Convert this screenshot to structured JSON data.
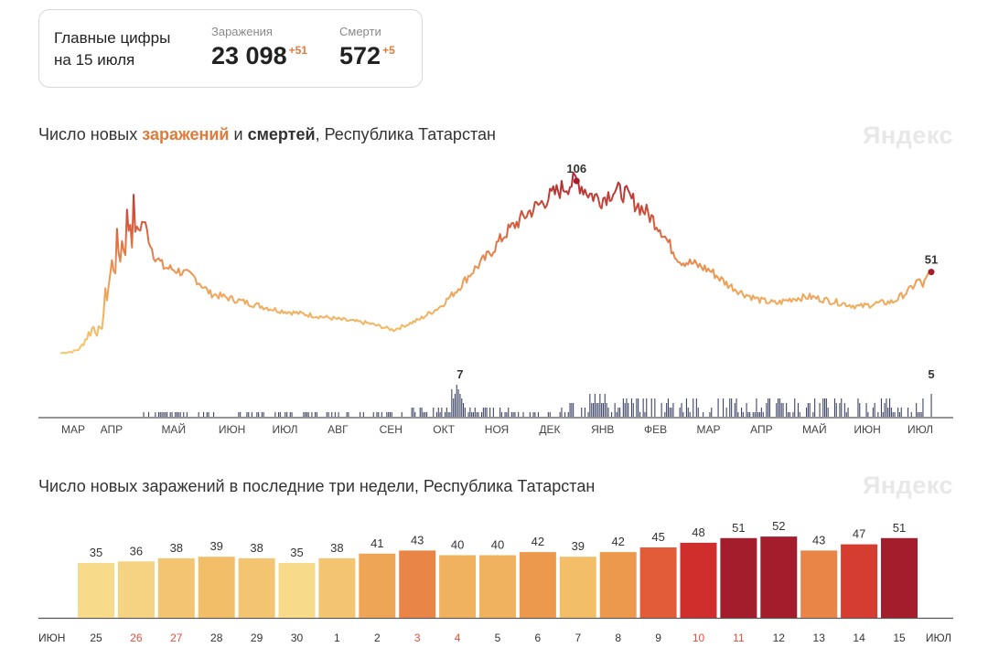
{
  "summary": {
    "title_line1": "Главные цифры",
    "title_line2": "на 15 июля",
    "infections": {
      "label": "Заражения",
      "value": "23 098",
      "delta": "+51"
    },
    "deaths": {
      "label": "Смерти",
      "value": "572",
      "delta": "+5"
    }
  },
  "chart1_title": {
    "prefix": "Число новых ",
    "infections": "заражений",
    "mid": " и ",
    "deaths": "смертей",
    "suffix": ", Республика Татарстан"
  },
  "chart2_title": "Число новых заражений в последние три недели, Республика Татарстан",
  "brand": "Яндекс",
  "colors": {
    "low": "#f7d98b",
    "high": "#a31d2c",
    "axis": "#888888",
    "deaths_bar": "#3d4466",
    "weekend": "#e74c3c"
  },
  "chart_data": [
    {
      "type": "line",
      "series": [
        {
          "name": "заражений",
          "unit": "day",
          "x_start": "2020-03-16",
          "knots": [
            [
              0,
              2
            ],
            [
              8,
              3
            ],
            [
              12,
              5
            ],
            [
              16,
              12
            ],
            [
              20,
              18
            ],
            [
              24,
              14
            ],
            [
              28,
              40
            ],
            [
              32,
              58
            ],
            [
              38,
              70
            ],
            [
              42,
              86
            ],
            [
              46,
              75
            ],
            [
              50,
              82
            ],
            [
              56,
              62
            ],
            [
              62,
              54
            ],
            [
              70,
              52
            ],
            [
              80,
              48
            ],
            [
              90,
              38
            ],
            [
              110,
              33
            ],
            [
              130,
              28
            ],
            [
              150,
              25
            ],
            [
              170,
              22
            ],
            [
              185,
              20
            ],
            [
              200,
              16
            ],
            [
              215,
              22
            ],
            [
              228,
              30
            ],
            [
              238,
              40
            ],
            [
              248,
              52
            ],
            [
              256,
              60
            ],
            [
              268,
              75
            ],
            [
              280,
              86
            ],
            [
              292,
              95
            ],
            [
              302,
              102
            ],
            [
              310,
              106
            ],
            [
              318,
              98
            ],
            [
              325,
              95
            ],
            [
              332,
              100
            ],
            [
              338,
              99
            ],
            [
              346,
              92
            ],
            [
              352,
              87
            ],
            [
              360,
              78
            ],
            [
              366,
              67
            ],
            [
              372,
              58
            ],
            [
              380,
              56
            ],
            [
              390,
              52
            ],
            [
              400,
              44
            ],
            [
              410,
              38
            ],
            [
              420,
              34
            ],
            [
              430,
              32
            ],
            [
              440,
              35
            ],
            [
              450,
              36
            ],
            [
              460,
              34
            ],
            [
              470,
              32
            ],
            [
              480,
              30
            ],
            [
              490,
              32
            ],
            [
              500,
              33
            ],
            [
              510,
              40
            ],
            [
              515,
              46
            ],
            [
              518,
              43
            ],
            [
              521,
              48
            ],
            [
              523,
              51
            ]
          ]
        }
      ],
      "labels": [
        {
          "x": 310,
          "value": "106"
        },
        {
          "x": 523,
          "value": "51"
        }
      ]
    },
    {
      "type": "bar",
      "series": [
        {
          "name": "смертей",
          "unit": "day"
        }
      ],
      "labels": [
        {
          "x": 240,
          "value": "7"
        },
        {
          "x": 523,
          "value": "5"
        }
      ],
      "ylim": [
        0,
        7
      ]
    },
    {
      "x_axis_months": [
        "МАР",
        "АПР",
        "МАЙ",
        "ИЮН",
        "ИЮЛ",
        "АВГ",
        "СЕН",
        "ОКТ",
        "НОЯ",
        "ДЕК",
        "ЯНВ",
        "ФЕВ",
        "МАР",
        "АПР",
        "МАЙ",
        "ИЮН",
        "ИЮЛ"
      ]
    },
    {
      "type": "bar",
      "title": "Число новых заражений в последние три недели, Республика Татарстан",
      "start_month": "ИЮН",
      "end_month": "ИЮЛ",
      "categories": [
        "25",
        "26",
        "27",
        "28",
        "29",
        "30",
        "1",
        "2",
        "3",
        "4",
        "5",
        "6",
        "7",
        "8",
        "9",
        "10",
        "11",
        "12",
        "13",
        "14",
        "15"
      ],
      "values": [
        35,
        36,
        38,
        39,
        38,
        35,
        38,
        41,
        43,
        40,
        40,
        42,
        39,
        42,
        45,
        48,
        51,
        52,
        43,
        47,
        51
      ],
      "weekend": [
        false,
        true,
        true,
        false,
        false,
        false,
        false,
        false,
        true,
        true,
        false,
        false,
        false,
        false,
        false,
        true,
        true,
        false,
        false,
        false,
        false
      ]
    }
  ]
}
